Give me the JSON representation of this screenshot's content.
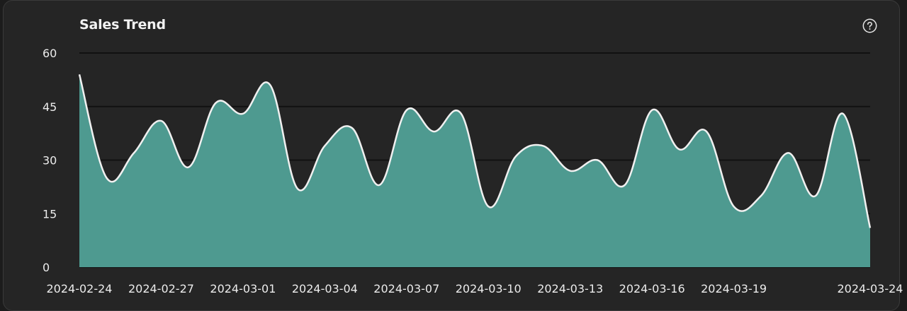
{
  "header": {
    "title": "Sales Trend",
    "help_icon": "help-circle-icon"
  },
  "colors": {
    "background": "#252525",
    "area_fill": "#4e9a90",
    "line": "#f0f0f0",
    "grid": "#111111",
    "text": "#ececec"
  },
  "chart_data": {
    "type": "area",
    "title": "Sales Trend",
    "xlabel": "",
    "ylabel": "",
    "ylim": [
      0,
      60
    ],
    "yticks": [
      0,
      15,
      30,
      45,
      60
    ],
    "grid": true,
    "xtick_labels": [
      "2024-02-24",
      "2024-02-27",
      "2024-03-01",
      "2024-03-04",
      "2024-03-07",
      "2024-03-10",
      "2024-03-13",
      "2024-03-16",
      "2024-03-19",
      "2024-03-24"
    ],
    "x": [
      "2024-02-24",
      "2024-02-25",
      "2024-02-26",
      "2024-02-27",
      "2024-02-28",
      "2024-02-29",
      "2024-03-01",
      "2024-03-02",
      "2024-03-03",
      "2024-03-04",
      "2024-03-05",
      "2024-03-06",
      "2024-03-07",
      "2024-03-08",
      "2024-03-09",
      "2024-03-10",
      "2024-03-11",
      "2024-03-12",
      "2024-03-13",
      "2024-03-14",
      "2024-03-15",
      "2024-03-16",
      "2024-03-17",
      "2024-03-18",
      "2024-03-19",
      "2024-03-20",
      "2024-03-21",
      "2024-03-22",
      "2024-03-23",
      "2024-03-24"
    ],
    "series": [
      {
        "values": [
          54,
          25,
          32,
          41,
          28,
          46,
          43,
          51,
          22,
          34,
          39,
          23,
          44,
          38,
          43,
          17,
          31,
          34,
          27,
          30,
          23,
          44,
          33,
          38,
          17,
          20,
          32,
          20,
          43,
          11
        ]
      }
    ]
  }
}
